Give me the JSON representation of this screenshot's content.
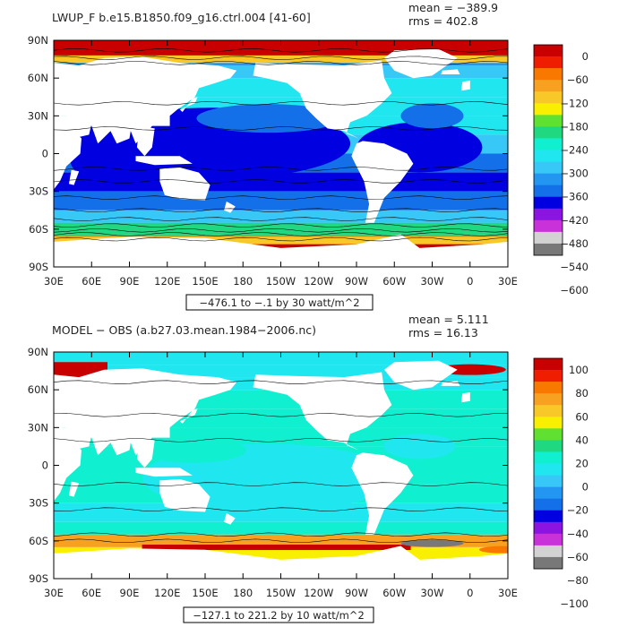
{
  "panels": [
    {
      "title": "LWUP_F b.e15.B1850.f09_g16.ctrl.004 [41-60]",
      "mean_text": "mean = −389.9",
      "rms_text": "rms = 402.8",
      "range_text": "−476.1 to −.1 by 30 watt/m^2",
      "colorbar_labels": [
        "0",
        "−60",
        "−120",
        "−180",
        "−240",
        "−300",
        "−360",
        "−420",
        "−480",
        "−540",
        "−600"
      ],
      "colorbar_colors": [
        "#c80000",
        "#f01e00",
        "#f87800",
        "#f8a020",
        "#f8c828",
        "#f8f000",
        "#60e030",
        "#20d880",
        "#10f0d0",
        "#20e6f0",
        "#38c8f8",
        "#2296f0",
        "#1470e8",
        "#0000e0",
        "#8c14e0",
        "#c832d8",
        "#d2d2d2",
        "#787878"
      ]
    },
    {
      "title": "MODEL − OBS (a.b27.03.mean.1984−2006.nc)",
      "mean_text": "mean = 5.111",
      "rms_text": "rms = 16.13",
      "range_text": "−127.1 to 221.2 by 10 watt/m^2",
      "colorbar_labels": [
        "100",
        "80",
        "60",
        "40",
        "20",
        "0",
        "−20",
        "−40",
        "−60",
        "−80",
        "−100"
      ],
      "colorbar_colors": [
        "#c80000",
        "#f01e00",
        "#f87800",
        "#f8a020",
        "#f8c828",
        "#f8f000",
        "#60e030",
        "#20d880",
        "#10f0d0",
        "#20e6f0",
        "#38c8f8",
        "#2296f0",
        "#1470e8",
        "#0000e0",
        "#8c14e0",
        "#c832d8",
        "#d2d2d2",
        "#787878"
      ]
    }
  ],
  "chart_data": [
    {
      "type": "heatmap",
      "title": "LWUP_F b.e15.B1850.f09_g16.ctrl.004 [41-60]",
      "mean": -389.9,
      "rms": 402.8,
      "range": "−476.1 to −.1 by 30 watt/m^2",
      "x_ticks": [
        "30E",
        "60E",
        "90E",
        "120E",
        "150E",
        "180",
        "150W",
        "120W",
        "90W",
        "60W",
        "30W",
        "0",
        "30E"
      ],
      "y_ticks": [
        "90N",
        "60N",
        "30N",
        "0",
        "30S",
        "60S",
        "90S"
      ],
      "levels": [
        0,
        -60,
        -120,
        -180,
        -240,
        -300,
        -360,
        -420,
        -480,
        -540,
        -600
      ],
      "band_values": [
        -390,
        -390,
        -360,
        -330,
        -300,
        -330,
        -360,
        -400,
        -450,
        -420,
        -340,
        -250,
        -90
      ],
      "ocean_pattern": "lwup",
      "grid": false,
      "legend_position": "right"
    },
    {
      "type": "heatmap",
      "title": "MODEL − OBS (a.b27.03.mean.1984−2006.nc)",
      "mean": 5.111,
      "rms": 16.13,
      "range": "−127.1 to 221.2 by 10 watt/m^2",
      "x_ticks": [
        "30E",
        "60E",
        "90E",
        "120E",
        "150E",
        "180",
        "150W",
        "120W",
        "90W",
        "60W",
        "30W",
        "0",
        "30E"
      ],
      "y_ticks": [
        "90N",
        "60N",
        "30N",
        "0",
        "30S",
        "60S",
        "90S"
      ],
      "levels": [
        100,
        80,
        60,
        40,
        20,
        0,
        -20,
        -40,
        -60,
        -80,
        -100
      ],
      "band_values": [
        0,
        -5,
        0,
        5,
        10,
        10,
        10,
        10,
        5,
        0,
        10,
        60,
        40
      ],
      "ocean_pattern": "diff",
      "grid": false,
      "legend_position": "right"
    }
  ]
}
